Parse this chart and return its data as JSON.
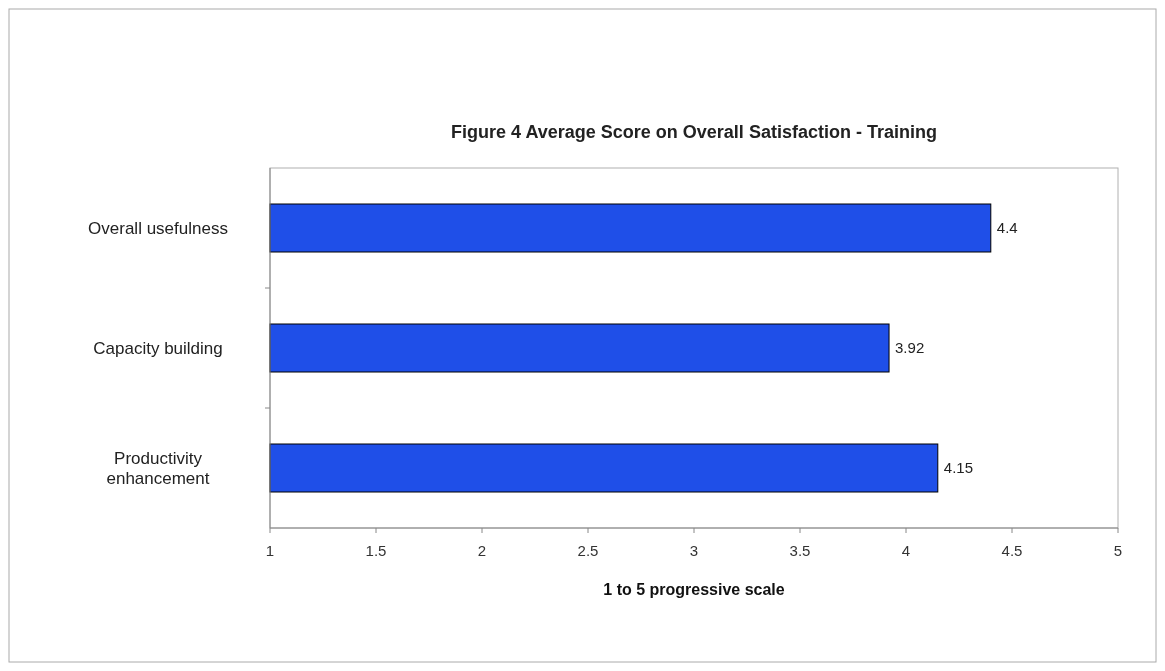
{
  "chart_data": {
    "type": "bar",
    "orientation": "horizontal",
    "title": "Figure 4 Average Score on Overall Satisfaction - Training",
    "xlabel": "1 to 5 progressive scale",
    "categories": [
      "Overall usefulness",
      "Capacity building",
      "Productivity enhancement"
    ],
    "values": [
      4.4,
      3.92,
      4.15
    ],
    "color": "#1f4fe8",
    "xlim": [
      1,
      5
    ],
    "xticks": [
      1,
      1.5,
      2,
      2.5,
      3,
      3.5,
      4,
      4.5,
      5
    ],
    "data_labels": true
  }
}
